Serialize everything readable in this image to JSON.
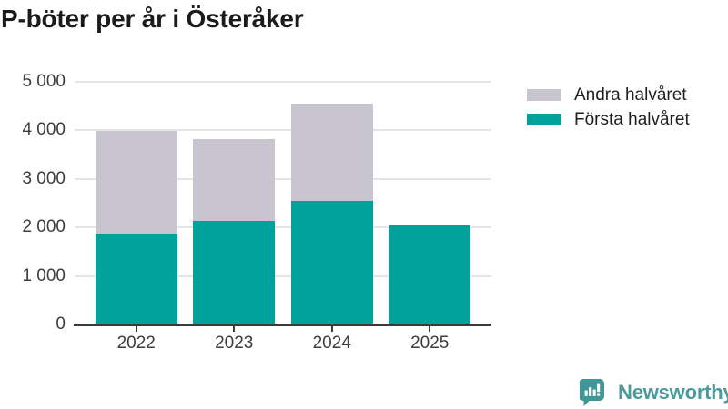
{
  "title": "P-böter per år i Österåker",
  "chart_data": {
    "type": "bar",
    "stacked": true,
    "title": "P-böter per år i Österåker",
    "categories": [
      "2022",
      "2023",
      "2024",
      "2025"
    ],
    "series": [
      {
        "name": "Första halvåret",
        "color": "#00a29b",
        "values": [
          1850,
          2130,
          2540,
          2050
        ]
      },
      {
        "name": "Andra halvåret",
        "color": "#c8c5d0",
        "values": [
          2130,
          1700,
          2020,
          0
        ]
      }
    ],
    "totals": [
      3980,
      3830,
      4560,
      2050
    ],
    "xlabel": "",
    "ylabel": "",
    "ylim": [
      0,
      5000
    ],
    "yticks": [
      0,
      1000,
      2000,
      3000,
      4000,
      5000
    ],
    "ytick_labels": [
      "0",
      "1 000",
      "2 000",
      "3 000",
      "4 000",
      "5 000"
    ],
    "grid": true,
    "legend_position": "outside-top-right"
  },
  "legend": {
    "items": [
      {
        "label": "Andra halvåret",
        "color": "#c8c5d0"
      },
      {
        "label": "Första halvåret",
        "color": "#00a29b"
      }
    ]
  },
  "branding": {
    "label": "Newsworthy",
    "text_color": "#4a9b9b",
    "icon_color": "#3f9898",
    "icon": "newsworthy-speech-bubble-barchart-icon"
  },
  "colors": {
    "axis_line": "#3a3a3a",
    "grid_line": "#e5e5e5",
    "tick_text": "#3d3d3d",
    "title_text": "#1b1b1b",
    "background": "#ffffff"
  }
}
